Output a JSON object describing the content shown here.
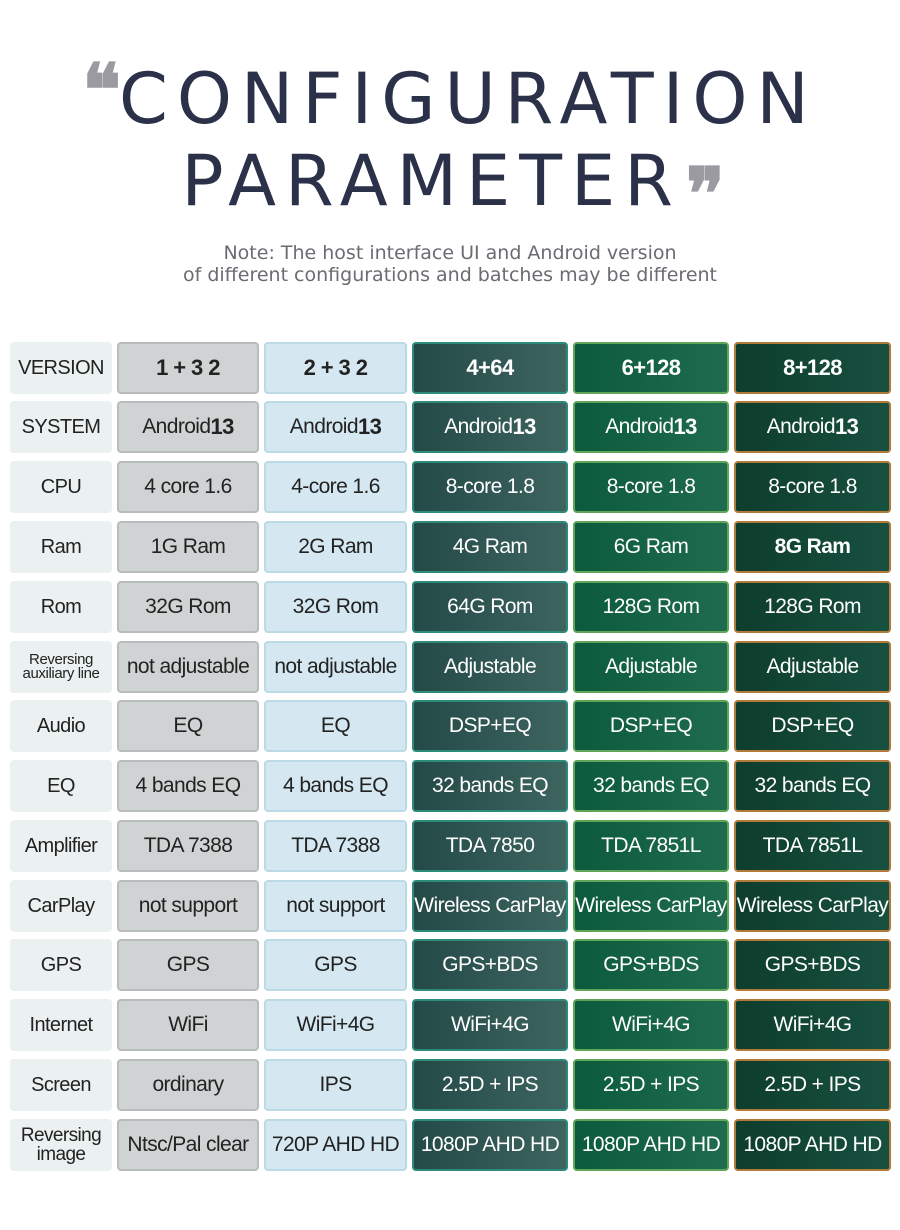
{
  "header": {
    "title_line1": "CONFIGURATION",
    "title_line2": "PARAMETER",
    "note_line1": "Note: The host interface UI and Android version",
    "note_line2": "of different configurations and batches may be different"
  },
  "colors": {
    "title": "#2a3148",
    "col_gray": "#cfd3d3",
    "col_lightblue": "#d5e8f1",
    "col_darkteal": "#2f5552",
    "col_green": "#0f6042",
    "col_darkgreen": "#11432f"
  },
  "table": {
    "rows": [
      {
        "label": "VERSION",
        "values": [
          "1 + 3 2",
          "2 + 3 2",
          "4+64",
          "6+128",
          "8+128"
        ]
      },
      {
        "label": "SYSTEM",
        "values": [
          "Android 13",
          "Android 13",
          "Android 13",
          "Android 13",
          "Android 13"
        ]
      },
      {
        "label": "CPU",
        "values": [
          "4 core 1.6",
          "4-core 1.6",
          "8-core 1.8",
          "8-core 1.8",
          "8-core 1.8"
        ]
      },
      {
        "label": "Ram",
        "values": [
          "1G Ram",
          "2G Ram",
          "4G Ram",
          "6G Ram",
          "8G Ram"
        ]
      },
      {
        "label": "Rom",
        "values": [
          "32G Rom",
          "32G Rom",
          "64G Rom",
          "128G Rom",
          "128G Rom"
        ]
      },
      {
        "label": "Reversing auxiliary line",
        "values": [
          "not adjustable",
          "not adjustable",
          "Adjustable",
          "Adjustable",
          "Adjustable"
        ]
      },
      {
        "label": "Audio",
        "values": [
          "EQ",
          "EQ",
          "DSP+EQ",
          "DSP+EQ",
          "DSP+EQ"
        ]
      },
      {
        "label": "EQ",
        "values": [
          "4 bands EQ",
          "4 bands EQ",
          "32 bands EQ",
          "32 bands EQ",
          "32 bands EQ"
        ]
      },
      {
        "label": "Amplifier",
        "values": [
          "TDA 7388",
          "TDA 7388",
          "TDA 7850",
          "TDA 7851L",
          "TDA 7851L"
        ]
      },
      {
        "label": "CarPlay",
        "values": [
          "not support",
          "not support",
          "Wireless CarPlay",
          "Wireless CarPlay",
          "Wireless CarPlay"
        ]
      },
      {
        "label": "GPS",
        "values": [
          "GPS",
          "GPS",
          "GPS+BDS",
          "GPS+BDS",
          "GPS+BDS"
        ]
      },
      {
        "label": "Internet",
        "values": [
          "WiFi",
          "WiFi+4G",
          "WiFi+4G",
          "WiFi+4G",
          "WiFi+4G"
        ]
      },
      {
        "label": "Screen",
        "values": [
          "ordinary",
          "IPS",
          "2.5D + IPS",
          "2.5D + IPS",
          "2.5D + IPS"
        ]
      },
      {
        "label": "Reversing image",
        "values": [
          "Ntsc/Pal clear",
          "720P AHD HD",
          "1080P AHD HD",
          "1080P AHD HD",
          "1080P AHD HD"
        ]
      }
    ]
  }
}
